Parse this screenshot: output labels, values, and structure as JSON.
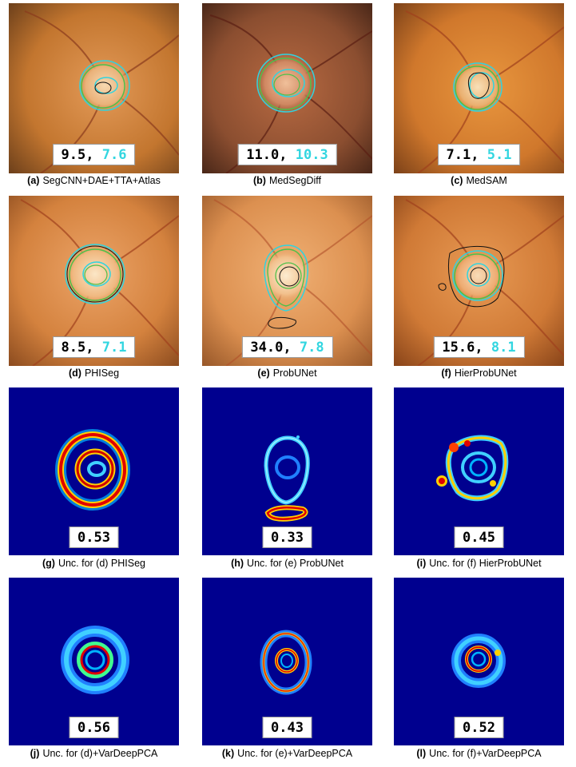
{
  "panels": [
    {
      "id": "a",
      "kind": "fundus",
      "caption_tag": "(a)",
      "caption": "SegCNN+DAE+TTA+Atlas",
      "v1": "9.5",
      "v2": "7.6"
    },
    {
      "id": "b",
      "kind": "fundus",
      "caption_tag": "(b)",
      "caption": "MedSegDiff",
      "v1": "11.0",
      "v2": "10.3"
    },
    {
      "id": "c",
      "kind": "fundus",
      "caption_tag": "(c)",
      "caption": "MedSAM",
      "v1": "7.1",
      "v2": "5.1"
    },
    {
      "id": "d",
      "kind": "fundus",
      "caption_tag": "(d)",
      "caption": "PHISeg",
      "v1": "8.5",
      "v2": "7.1"
    },
    {
      "id": "e",
      "kind": "fundus",
      "caption_tag": "(e)",
      "caption": "ProbUNet",
      "v1": "34.0",
      "v2": "7.8"
    },
    {
      "id": "f",
      "kind": "fundus",
      "caption_tag": "(f)",
      "caption": "HierProbUNet",
      "v1": "15.6",
      "v2": "8.1"
    },
    {
      "id": "g",
      "kind": "heat",
      "caption_tag": "(g)",
      "caption": "Unc. for (d) PHISeg",
      "v1": "0.53"
    },
    {
      "id": "h",
      "kind": "heat",
      "caption_tag": "(h)",
      "caption": "Unc. for (e) ProbUNet",
      "v1": "0.33"
    },
    {
      "id": "i",
      "kind": "heat",
      "caption_tag": "(i)",
      "caption": "Unc. for (f) HierProbUNet",
      "v1": "0.45"
    },
    {
      "id": "j",
      "kind": "heat",
      "caption_tag": "(j)",
      "caption": "Unc. for (d)+VarDeepPCA",
      "v1": "0.56"
    },
    {
      "id": "k",
      "kind": "heat",
      "caption_tag": "(k)",
      "caption": "Unc. for (e)+VarDeepPCA",
      "v1": "0.43"
    },
    {
      "id": "l",
      "kind": "heat",
      "caption_tag": "(l)",
      "caption": "Unc. for (f)+VarDeepPCA",
      "v1": "0.52"
    }
  ],
  "colors": {
    "heat_background": "#00008f",
    "fundus_base": "#c8823c",
    "contour_cyan": "#2fd4e0",
    "contour_green": "#4fc04a",
    "contour_black": "#111111"
  }
}
